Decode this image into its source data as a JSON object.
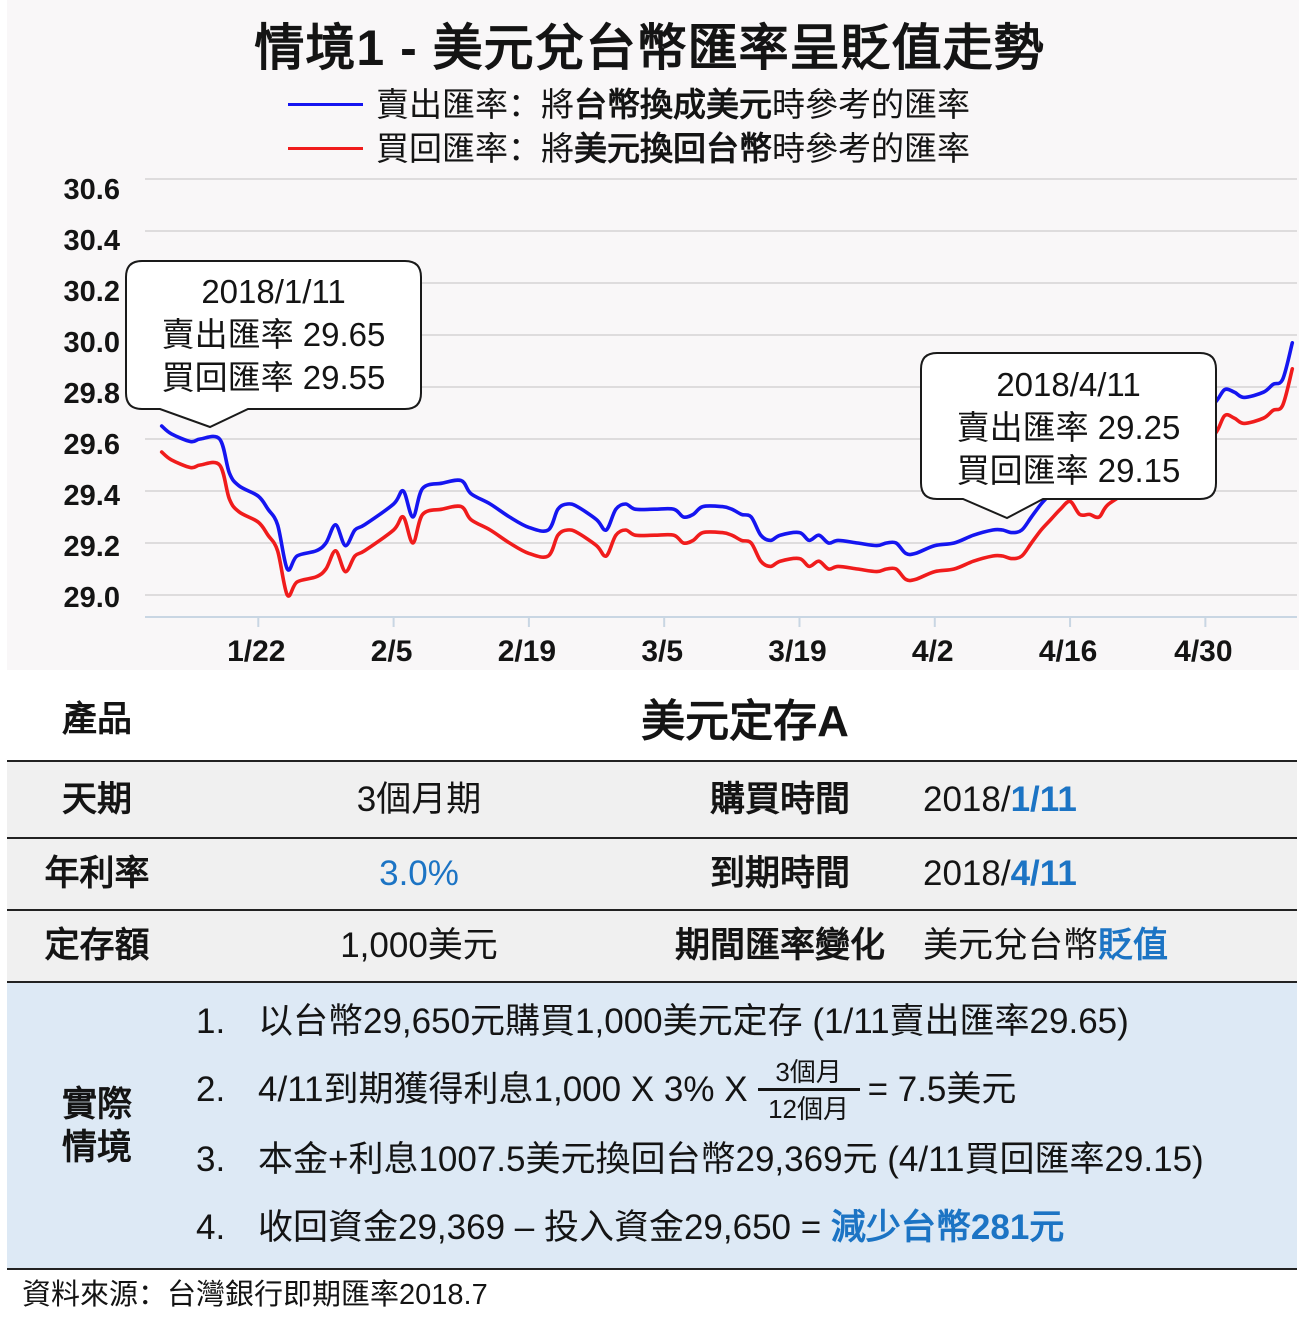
{
  "chart_panel": {
    "legend": [
      {
        "label": "賣出匯率",
        "sep": "：",
        "pre": "將",
        "bold": "台幣換成美元",
        "post": "時參考的匯率",
        "color": "#1515f0"
      },
      {
        "label": "買回匯率",
        "sep": "：",
        "pre": "將",
        "bold": "美元換回台幣",
        "post": "時參考的匯率",
        "color": "#f01c1c"
      }
    ]
  },
  "chart_data": {
    "type": "line",
    "title": "情境1 - 美元兌台幣匯率呈貶值走勢",
    "xlabel": "",
    "ylabel": "",
    "ylim": [
      29.0,
      30.6
    ],
    "y_ticks": [
      "30.6",
      "30.4",
      "30.2",
      "30.0",
      "29.8",
      "29.6",
      "29.4",
      "29.2",
      "29.0"
    ],
    "x_ticks": [
      "1/22",
      "2/5",
      "2/19",
      "3/5",
      "3/19",
      "4/2",
      "4/16",
      "4/30"
    ],
    "grid": true,
    "legend_position": "top",
    "x": [
      "1/12",
      "1/13",
      "1/15",
      "1/16",
      "1/18",
      "1/19",
      "1/20",
      "1/22",
      "1/23",
      "1/24",
      "1/25",
      "1/26",
      "1/28",
      "1/29",
      "1/30",
      "1/31",
      "2/1",
      "2/2",
      "2/5",
      "2/6",
      "2/7",
      "2/8",
      "2/10",
      "2/12",
      "2/13",
      "2/15",
      "2/17",
      "2/19",
      "2/21",
      "2/22",
      "2/23",
      "2/24",
      "2/26",
      "2/27",
      "2/28",
      "3/1",
      "3/2",
      "3/4",
      "3/6",
      "3/7",
      "3/8",
      "3/9",
      "3/11",
      "3/12",
      "3/13",
      "3/14",
      "3/15",
      "3/16",
      "3/17",
      "3/19",
      "3/20",
      "3/21",
      "3/22",
      "3/23",
      "3/25",
      "3/27",
      "3/28",
      "3/29",
      "3/30",
      "3/31",
      "4/2",
      "4/4",
      "4/6",
      "4/8",
      "4/9",
      "4/10",
      "4/11",
      "4/12",
      "4/13",
      "4/14",
      "4/15",
      "4/16",
      "4/17",
      "4/18",
      "4/19",
      "4/20",
      "4/23",
      "4/26",
      "4/29",
      "5/1",
      "5/2",
      "5/3",
      "5/4",
      "5/6",
      "5/7",
      "5/8",
      "5/9"
    ],
    "series": [
      {
        "name": "賣出匯率",
        "color": "#1515f0",
        "values": [
          29.65,
          29.62,
          29.59,
          29.6,
          29.6,
          29.47,
          29.42,
          29.38,
          29.33,
          29.27,
          29.1,
          29.15,
          29.17,
          29.2,
          29.27,
          29.19,
          29.25,
          29.27,
          29.35,
          29.4,
          29.3,
          29.41,
          29.43,
          29.44,
          29.39,
          29.35,
          29.3,
          29.26,
          29.25,
          29.33,
          29.35,
          29.34,
          29.29,
          29.25,
          29.33,
          29.35,
          29.33,
          29.33,
          29.33,
          29.3,
          29.31,
          29.34,
          29.34,
          29.33,
          29.31,
          29.3,
          29.23,
          29.21,
          29.23,
          29.24,
          29.21,
          29.23,
          29.2,
          29.21,
          29.2,
          29.19,
          29.2,
          29.2,
          29.16,
          29.16,
          29.19,
          29.2,
          29.23,
          29.25,
          29.25,
          29.24,
          29.25,
          29.3,
          29.35,
          29.39,
          29.43,
          29.46,
          29.41,
          29.41,
          29.4,
          29.45,
          29.52,
          29.6,
          29.68,
          29.74,
          29.79,
          29.78,
          29.76,
          29.78,
          29.81,
          29.83,
          29.97
        ]
      },
      {
        "name": "買回匯率",
        "color": "#f01c1c",
        "values": [
          29.55,
          29.52,
          29.49,
          29.5,
          29.5,
          29.37,
          29.32,
          29.28,
          29.23,
          29.17,
          29.0,
          29.05,
          29.07,
          29.1,
          29.17,
          29.09,
          29.15,
          29.17,
          29.25,
          29.3,
          29.2,
          29.31,
          29.33,
          29.34,
          29.29,
          29.25,
          29.2,
          29.16,
          29.15,
          29.23,
          29.25,
          29.24,
          29.19,
          29.15,
          29.23,
          29.25,
          29.23,
          29.23,
          29.23,
          29.2,
          29.21,
          29.24,
          29.24,
          29.23,
          29.21,
          29.2,
          29.13,
          29.11,
          29.13,
          29.14,
          29.11,
          29.13,
          29.1,
          29.11,
          29.1,
          29.09,
          29.1,
          29.1,
          29.06,
          29.06,
          29.09,
          29.1,
          29.13,
          29.15,
          29.15,
          29.14,
          29.15,
          29.2,
          29.25,
          29.29,
          29.33,
          29.36,
          29.31,
          29.31,
          29.3,
          29.35,
          29.42,
          29.5,
          29.57,
          29.62,
          29.69,
          29.68,
          29.66,
          29.68,
          29.71,
          29.73,
          29.87
        ]
      }
    ],
    "annotations": [
      {
        "date": "2018/1/11",
        "sell_label": "賣出匯率",
        "sell_value": "29.65",
        "buy_label": "買回匯率",
        "buy_value": "29.55"
      },
      {
        "date": "2018/4/11",
        "sell_label": "賣出匯率",
        "sell_value": "29.25",
        "buy_label": "買回匯率",
        "buy_value": "29.15"
      }
    ]
  },
  "table": {
    "product_label": "產品",
    "product_value": "美元定存A",
    "rows": [
      {
        "label1": "天期",
        "value1": "3個月期",
        "label2": "購買時間",
        "value2_prefix": "2018/",
        "value2_highlight": "1/11"
      },
      {
        "label1": "年利率",
        "value1": "3.0%",
        "label2": "到期時間",
        "value2_prefix": "2018/",
        "value2_highlight": "4/11"
      },
      {
        "label1": "定存額",
        "value1": "1,000美元",
        "label2": "期間匯率變化",
        "value2_prefix": "美元兌台幣",
        "value2_highlight": "貶值"
      }
    ],
    "scenario": {
      "label_line1": "實際",
      "label_line2": "情境",
      "items": [
        {
          "num": "1.",
          "text": "以台幣29,650元購買1,000美元定存 (1/11賣出匯率29.65)"
        },
        {
          "num": "2.",
          "text_before": "4/11到期獲得利息1,000 X 3% X",
          "frac_num": "3個月",
          "frac_den": "12個月",
          "text_after": "= 7.5美元"
        },
        {
          "num": "3.",
          "text": "本金+利息1007.5美元換回台幣29,369元 (4/11買回匯率29.15)"
        },
        {
          "num": "4.",
          "text": "收回資金29,369 – 投入資金29,650 = ",
          "highlight": "減少台幣281元"
        }
      ]
    }
  },
  "source": "資料來源：台灣銀行即期匯率2018.7",
  "colors": {
    "sell_line": "#1515f0",
    "buy_line": "#f01c1c",
    "highlight_text": "#1c74c4",
    "chart_bg": "#f9f7f8",
    "row_bg": "#f0f0f0",
    "scenario_bg": "#dde9f5"
  }
}
